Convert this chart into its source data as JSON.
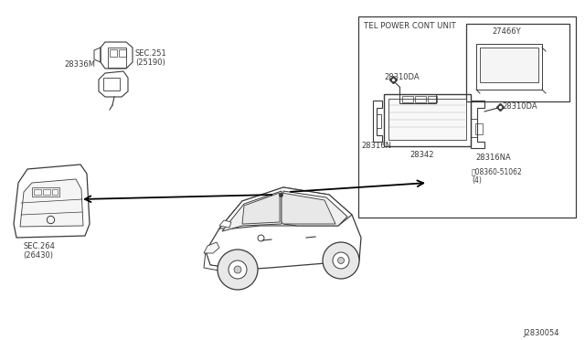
{
  "bg_color": "#ffffff",
  "diagram_id": "J2830054",
  "lc": "#3a3a3a",
  "lc_thin": "#555555",
  "fs_label": 6.0,
  "fs_tiny": 5.5,
  "labels": {
    "tel_power_unit": "TEL POWER CONT UNIT",
    "part_28310da_1": "28310DA",
    "part_28310da_2": "28310DA",
    "part_28316n": "28316N",
    "part_28342": "28342",
    "part_28316na": "28316NA",
    "part_27466y": "27466Y",
    "bolt_label": "倅08360-51062\n(4)",
    "part_28336m": "28336M",
    "sec_251": "SEC.251\n(25190)",
    "sec_264": "SEC.264\n(26430)"
  }
}
